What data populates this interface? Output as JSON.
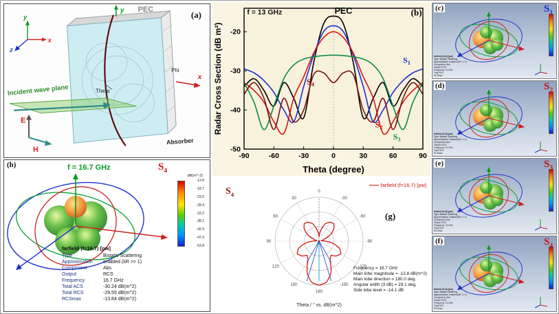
{
  "panel_a": {
    "label": "(a)",
    "pec": "PEC",
    "absorber": "Absorber",
    "incident": "Incident wave plane",
    "e": "E",
    "h": "H",
    "phi": "Phi",
    "theta": "Theta",
    "axes": {
      "x": "x",
      "y": "y",
      "z": "z"
    }
  },
  "chart_data": [
    {
      "type": "line",
      "panel_label": "(b)",
      "title": "f = 13 GHz",
      "xlabel": "Theta (degree)",
      "ylabel": "Radar Cross Section (dB m²)",
      "xlim": [
        -90,
        90
      ],
      "ylim": [
        -50,
        -14
      ],
      "xticks": [
        -90,
        -60,
        -30,
        0,
        30,
        60,
        90
      ],
      "yticks": [
        -20,
        -30,
        -40,
        -50
      ],
      "x": [
        -90,
        -80,
        -70,
        -60,
        -50,
        -40,
        -30,
        -20,
        -10,
        0,
        10,
        20,
        30,
        40,
        50,
        60,
        70,
        80,
        90
      ],
      "series": [
        {
          "name": "PEC",
          "color": "#000000",
          "values": [
            -34,
            -32,
            -35,
            -39,
            -33,
            -37,
            -42,
            -28,
            -18,
            -16,
            -18,
            -28,
            -42,
            -37,
            -33,
            -39,
            -35,
            -32,
            -34
          ]
        },
        {
          "name": "S1",
          "color": "#1b2fd0",
          "values": [
            -29.5,
            -30.5,
            -32.5,
            -35.5,
            -40,
            -43,
            -34,
            -26,
            -20,
            -18.5,
            -20,
            -26,
            -34,
            -43,
            -40,
            -35.5,
            -32.5,
            -30.5,
            -29.5
          ]
        },
        {
          "name": "S2",
          "color": "#d81515",
          "values": [
            -33,
            -35,
            -38,
            -43,
            -46,
            -37,
            -31.5,
            -25.5,
            -21.5,
            -20,
            -21.5,
            -25.5,
            -31.5,
            -37,
            -46,
            -43,
            -38,
            -35,
            -33
          ]
        },
        {
          "name": "S3",
          "color": "#0a8a45",
          "values": [
            -33,
            -38,
            -45,
            -39,
            -32,
            -28.5,
            -27,
            -26.4,
            -26.1,
            -26,
            -26.1,
            -26.4,
            -27,
            -28.5,
            -32,
            -39,
            -45,
            -38,
            -33
          ]
        },
        {
          "name": "S4",
          "color": "#7a1212",
          "values": [
            -36,
            -33,
            -37,
            -45,
            -37,
            -43,
            -40,
            -31,
            -30.5,
            -33,
            -30.5,
            -31,
            -40,
            -43,
            -37,
            -45,
            -37,
            -33,
            -36
          ]
        }
      ],
      "labels": [
        {
          "text": "f = 13 GHz",
          "x": -87,
          "y": -15.6,
          "color": "#111111",
          "size": 10.5,
          "anchor": "start"
        },
        {
          "text": "PEC",
          "x": 10,
          "y": -15.4,
          "color": "#000000",
          "size": 12.5,
          "anchor": "middle"
        },
        {
          "text": "(b)",
          "x": 89,
          "y": -15.8,
          "color": "#000000",
          "size": 13,
          "anchor": "end",
          "serif": true
        },
        {
          "text": "S",
          "sub": "1",
          "x": 70,
          "y": -28,
          "color": "#1b2fd0",
          "size": 12,
          "anchor": "start",
          "serif": true
        },
        {
          "text": "S",
          "sub": "4",
          "x": -27,
          "y": -33.5,
          "color": "#7a1212",
          "size": 12,
          "anchor": "start",
          "serif": true
        },
        {
          "text": "S",
          "sub": "2",
          "x": 42,
          "y": -44.5,
          "color": "#d81515",
          "size": 12,
          "anchor": "start",
          "serif": true
        },
        {
          "text": "S",
          "sub": "3",
          "x": 60,
          "y": -47.5,
          "color": "#0a8a45",
          "size": 12,
          "anchor": "start",
          "serif": true
        }
      ]
    },
    {
      "type": "polar",
      "panel_label": "(g)",
      "s_main": "S",
      "s_sub": "4",
      "s_color": "#8a1515",
      "legend": "farfield (f=16.7) [pw]",
      "caption": "Theta / ° vs. dB(m^2)",
      "angle_labels": [
        "0",
        "-30",
        "-60",
        "-90",
        "-120",
        "-150",
        "180",
        "150",
        "120",
        "90",
        "60",
        "30"
      ],
      "r_points": [
        [
          0,
          0.1
        ],
        [
          10,
          0.26
        ],
        [
          20,
          0.42
        ],
        [
          30,
          0.5
        ],
        [
          40,
          0.52
        ],
        [
          50,
          0.44
        ],
        [
          60,
          0.3
        ],
        [
          70,
          0.12
        ],
        [
          80,
          0.05
        ],
        [
          90,
          0.14
        ],
        [
          100,
          0.34
        ],
        [
          110,
          0.5
        ],
        [
          120,
          0.57
        ],
        [
          130,
          0.52
        ],
        [
          140,
          0.42
        ],
        [
          150,
          0.5
        ],
        [
          160,
          0.78
        ],
        [
          170,
          0.95
        ],
        [
          180,
          1.0
        ]
      ],
      "marker_lines": [
        {
          "angle": 163,
          "len": 0.95,
          "color": "#2f55cc"
        },
        {
          "angle": 197,
          "len": 0.95,
          "color": "#2f55cc"
        },
        {
          "angle": 150,
          "len": 0.55,
          "color": "#2f55cc"
        },
        {
          "angle": 210,
          "len": 0.55,
          "color": "#2f55cc"
        },
        {
          "angle": 180,
          "len": 0.9,
          "color": "#00a8b0"
        }
      ],
      "annotations": [
        "Frequency = 16.7 GHz",
        "Main lobe magnitude = -13.8 dB(m^2)",
        "Main lobe direction = 180.0 deg.",
        "Angular width (3 dB) = 29.1 deg.",
        "Side lobe level = -14.1 dB"
      ]
    }
  ],
  "cst_panels": [
    {
      "letter": "(c)",
      "s_main": "S",
      "s_sub": "1",
      "color": "#1b2fd0"
    },
    {
      "letter": "(d)",
      "s_main": "S",
      "s_sub": "2",
      "color": "#cc1111"
    },
    {
      "letter": "(e)",
      "s_main": "S",
      "s_sub": "3",
      "color": "#cc1111"
    },
    {
      "letter": "(f)",
      "s_main": "S",
      "s_sub": "4",
      "color": "#cc1111"
    }
  ],
  "cst_common": {
    "info_lines": [
      "farfield (f=13) [pw]",
      "Type: Bistatic Scattering",
      "Approximation: enabled (kR >> 1)",
      "Component: Abs",
      "Output: RCS",
      "Frequency: 13 GHz",
      "Total RCS",
      "RCSmax"
    ]
  },
  "panel_h": {
    "label": "(h)",
    "freq": "f = 16.7 GHz",
    "freq_color": "#0a9c28",
    "s_main": "S",
    "s_sub": "4",
    "s_color": "#cc1111",
    "colorbar_title": "dB(m^-2)",
    "colorbar_ticks": [
      "-13.8",
      "-18.7",
      "-23.5",
      "-28.4",
      "-33.2",
      "-38.1",
      "-42.9",
      "-47.9",
      "-53.8"
    ],
    "farfield": {
      "header": "farfield (f=16.7) [pw]",
      "rows": [
        [
          "Type",
          "Bistatic Scattering"
        ],
        [
          "Approximation",
          "enabled (kR >> 1)"
        ],
        [
          "Component",
          "Abs"
        ],
        [
          "Output",
          "RCS"
        ],
        [
          "Frequency",
          "16.7 GHz"
        ],
        [
          "Total ACS",
          "-30.24 dB(m^2)"
        ],
        [
          "Total RCS",
          "-29.55 dB(m^2)"
        ],
        [
          "RCSmax",
          "-13.84 dB(m^2)"
        ]
      ]
    }
  }
}
